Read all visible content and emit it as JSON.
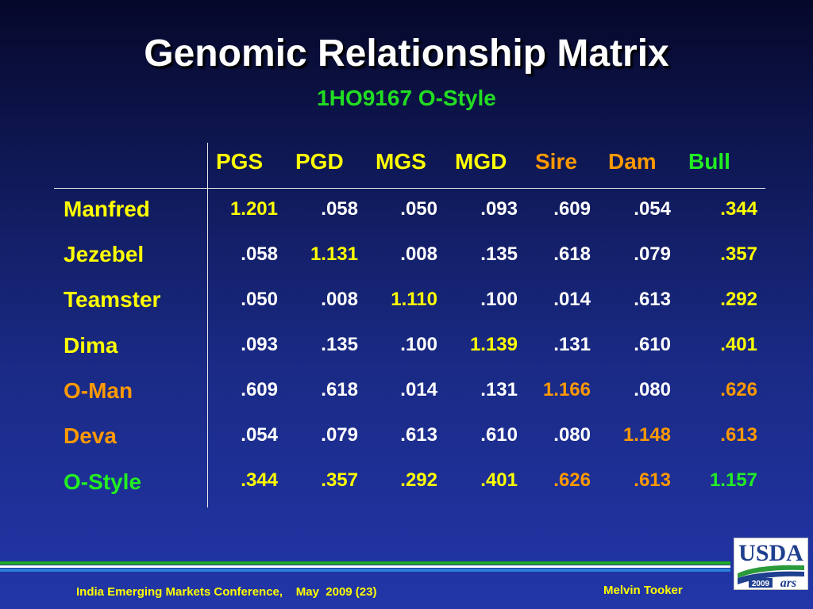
{
  "title": "Genomic Relationship Matrix",
  "subtitle": "1HO9167 O-Style",
  "columns": [
    "PGS",
    "PGD",
    "MGS",
    "MGD",
    "Sire",
    "Dam",
    "Bull"
  ],
  "rows": [
    {
      "label": "Manfred",
      "values": [
        "1.201",
        ".058",
        ".050",
        ".093",
        ".609",
        ".054",
        ".344"
      ]
    },
    {
      "label": "Jezebel",
      "values": [
        ".058",
        "1.131",
        ".008",
        ".135",
        ".618",
        ".079",
        ".357"
      ]
    },
    {
      "label": "Teamster",
      "values": [
        ".050",
        ".008",
        "1.110",
        ".100",
        ".014",
        ".613",
        ".292"
      ]
    },
    {
      "label": "Dima",
      "values": [
        ".093",
        ".135",
        ".100",
        "1.139",
        ".131",
        ".610",
        ".401"
      ]
    },
    {
      "label": "O-Man",
      "values": [
        ".609",
        ".618",
        ".014",
        ".131",
        "1.166",
        ".080",
        ".626"
      ]
    },
    {
      "label": "Deva",
      "values": [
        ".054",
        ".079",
        ".613",
        ".610",
        ".080",
        "1.148",
        ".613"
      ]
    },
    {
      "label": "O-Style",
      "values": [
        ".344",
        ".357",
        ".292",
        ".401",
        ".626",
        ".613",
        "1.157"
      ]
    }
  ],
  "colors": {
    "white": "#ffffff",
    "yellow": "#ffff00",
    "orange": "#ff9900",
    "green": "#22ee22"
  },
  "footer": {
    "left": "India Emerging Markets Conference,    May  2009 (23)",
    "right": "Melvin Tooker"
  },
  "logo": {
    "text": "USDA",
    "year": "2009",
    "mark": "ars"
  }
}
